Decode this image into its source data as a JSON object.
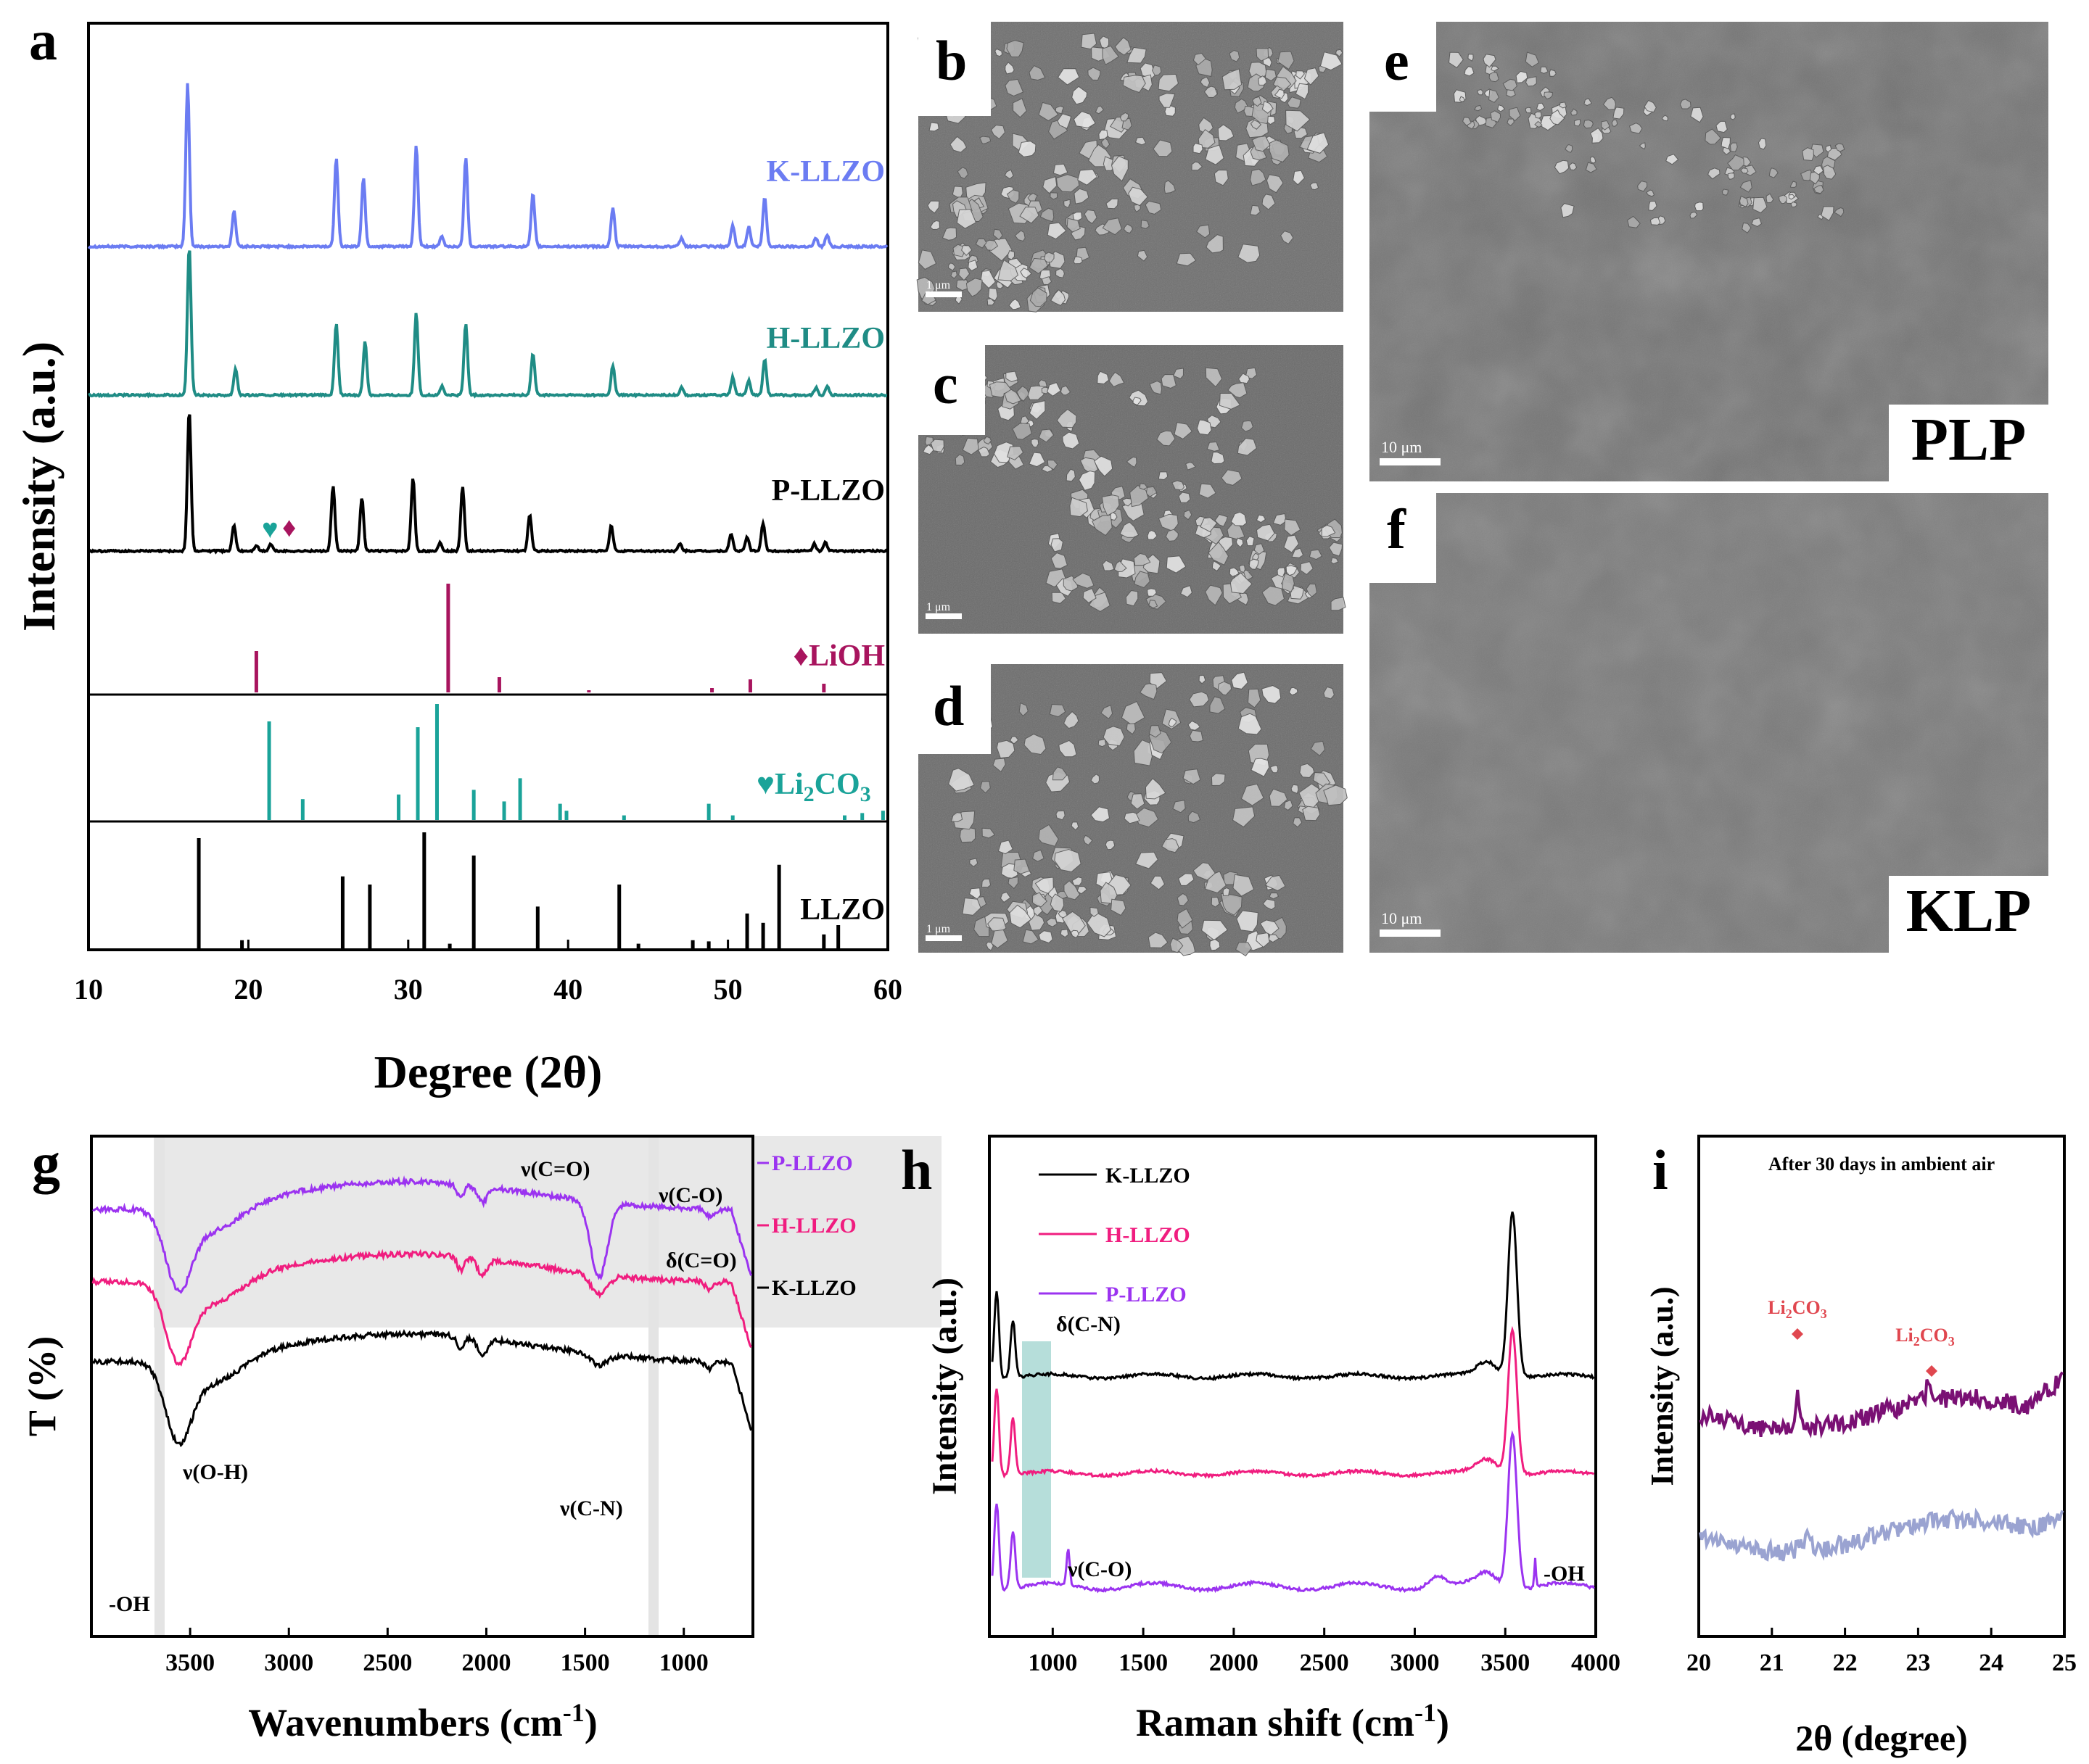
{
  "panels": {
    "a": {
      "label": "a"
    },
    "b": {
      "label": "b"
    },
    "c": {
      "label": "c"
    },
    "d": {
      "label": "d"
    },
    "e": {
      "label": "e"
    },
    "f": {
      "label": "f"
    },
    "g": {
      "label": "g"
    },
    "h": {
      "label": "h"
    },
    "i": {
      "label": "i"
    }
  },
  "sem": {
    "b": {
      "scale": "1 μm"
    },
    "c": {
      "scale": "1 μm"
    },
    "d": {
      "scale": "1 μm"
    },
    "e": {
      "scale": "10 μm",
      "tag": "PLP"
    },
    "f": {
      "scale": "10 μm",
      "tag": "KLP"
    }
  },
  "chart_data": [
    {
      "id": "a",
      "type": "line",
      "xlabel": "Degree (2θ)",
      "ylabel": "Intensity (a.u.)",
      "xlim": [
        10,
        60
      ],
      "xticks": [
        10,
        20,
        30,
        40,
        50,
        60
      ],
      "colors": {
        "K-LLZO": "#6b7cf2",
        "H-LLZO": "#1f8c85",
        "P-LLZO": "#000000",
        "LiOH": "#a8145e",
        "Li2CO3": "#1aa399",
        "LLZO": "#000000"
      },
      "series": [
        {
          "name": "K-LLZO",
          "peaks": [
            [
              16.2,
              1.0
            ],
            [
              19.1,
              0.22
            ],
            [
              25.5,
              0.55
            ],
            [
              27.2,
              0.42
            ],
            [
              30.5,
              0.62
            ],
            [
              32.1,
              0.06
            ],
            [
              33.6,
              0.55
            ],
            [
              37.8,
              0.32
            ],
            [
              42.8,
              0.24
            ],
            [
              47.1,
              0.05
            ],
            [
              50.3,
              0.13
            ],
            [
              51.3,
              0.12
            ],
            [
              52.3,
              0.3
            ],
            [
              55.5,
              0.05
            ],
            [
              56.2,
              0.07
            ]
          ]
        },
        {
          "name": "H-LLZO",
          "peaks": [
            [
              16.3,
              1.0
            ],
            [
              19.2,
              0.18
            ],
            [
              25.5,
              0.48
            ],
            [
              27.3,
              0.36
            ],
            [
              30.5,
              0.55
            ],
            [
              32.1,
              0.06
            ],
            [
              33.6,
              0.48
            ],
            [
              37.8,
              0.28
            ],
            [
              42.8,
              0.2
            ],
            [
              47.1,
              0.05
            ],
            [
              50.3,
              0.12
            ],
            [
              51.3,
              0.1
            ],
            [
              52.3,
              0.24
            ],
            [
              55.5,
              0.05
            ],
            [
              56.2,
              0.06
            ]
          ]
        },
        {
          "name": "P-LLZO",
          "peaks": [
            [
              16.3,
              1.0
            ],
            [
              19.1,
              0.18
            ],
            [
              20.5,
              0.04
            ],
            [
              21.4,
              0.05
            ],
            [
              25.3,
              0.46
            ],
            [
              27.1,
              0.38
            ],
            [
              30.3,
              0.52
            ],
            [
              32.0,
              0.06
            ],
            [
              33.4,
              0.46
            ],
            [
              37.6,
              0.26
            ],
            [
              42.7,
              0.18
            ],
            [
              47.0,
              0.05
            ],
            [
              50.2,
              0.12
            ],
            [
              51.2,
              0.1
            ],
            [
              52.2,
              0.2
            ],
            [
              55.4,
              0.05
            ],
            [
              56.1,
              0.06
            ]
          ]
        }
      ],
      "reference": [
        {
          "name": "LiOH",
          "lines": [
            [
              20.5,
              0.38
            ],
            [
              32.5,
              1.0
            ],
            [
              35.7,
              0.14
            ],
            [
              41.3,
              0.02
            ],
            [
              49.0,
              0.04
            ],
            [
              51.4,
              0.12
            ],
            [
              56.0,
              0.08
            ]
          ]
        },
        {
          "name": "Li2CO3",
          "lines": [
            [
              21.3,
              0.85
            ],
            [
              23.4,
              0.18
            ],
            [
              29.4,
              0.22
            ],
            [
              30.6,
              0.8
            ],
            [
              31.8,
              1.0
            ],
            [
              34.1,
              0.26
            ],
            [
              36.0,
              0.16
            ],
            [
              37.0,
              0.36
            ],
            [
              39.5,
              0.14
            ],
            [
              39.9,
              0.08
            ],
            [
              43.5,
              0.04
            ],
            [
              48.8,
              0.14
            ],
            [
              50.3,
              0.04
            ],
            [
              57.3,
              0.04
            ],
            [
              58.4,
              0.06
            ],
            [
              59.7,
              0.08
            ]
          ]
        },
        {
          "name": "LLZO",
          "lines": [
            [
              16.9,
              0.95
            ],
            [
              19.6,
              0.07
            ],
            [
              25.9,
              0.62
            ],
            [
              27.6,
              0.55
            ],
            [
              31.0,
              1.0
            ],
            [
              32.6,
              0.04
            ],
            [
              34.1,
              0.8
            ],
            [
              38.1,
              0.36
            ],
            [
              43.2,
              0.55
            ],
            [
              44.4,
              0.04
            ],
            [
              47.8,
              0.07
            ],
            [
              48.8,
              0.06
            ],
            [
              51.2,
              0.3
            ],
            [
              52.2,
              0.22
            ],
            [
              53.2,
              0.72
            ],
            [
              56.0,
              0.12
            ],
            [
              56.9,
              0.2
            ]
          ]
        }
      ],
      "series_labels": [
        "K-LLZO",
        "H-LLZO",
        "P-LLZO"
      ],
      "ref_labels": {
        "LiOH": "♦LiOH",
        "Li2CO3_prefix": "♥Li",
        "Li2CO3_sub1": "2",
        "Li2CO3_mid": "CO",
        "Li2CO3_sub2": "3",
        "LLZO": "LLZO"
      },
      "markers": {
        "diamond": "♦",
        "heart": "♥"
      }
    },
    {
      "id": "g",
      "type": "line",
      "xlabel_main": "Wavenumbers (cm",
      "xlabel_sup": "-1",
      "xlabel_end": ")",
      "ylabel": "T (%)",
      "xlim": [
        4000,
        650
      ],
      "xticks": [
        3500,
        3000,
        2500,
        2000,
        1500,
        1000
      ],
      "series": [
        {
          "name": "P-LLZO",
          "color": "#9b33f0"
        },
        {
          "name": "H-LLZO",
          "color": "#f01d7f"
        },
        {
          "name": "K-LLZO",
          "color": "#000000"
        }
      ],
      "annotations": [
        "ν(C=O)",
        "ν(C-O)",
        "δ(C=O)",
        "ν(O-H)",
        "ν(C-N)",
        "-OH"
      ],
      "highlight_bands": [
        3690,
        1150
      ]
    },
    {
      "id": "h",
      "type": "line",
      "xlabel_main": "Raman shift (cm",
      "xlabel_sup": "-1",
      "xlabel_end": ")",
      "ylabel": "Intensity (a.u.)",
      "xlim": [
        650,
        4000
      ],
      "xticks": [
        1000,
        1500,
        2000,
        2500,
        3000,
        3500,
        4000
      ],
      "series": [
        {
          "name": "K-LLZO",
          "color": "#000000"
        },
        {
          "name": "H-LLZO",
          "color": "#f01d7f"
        },
        {
          "name": "P-LLZO",
          "color": "#9b33f0"
        }
      ],
      "annotations": [
        "δ(C-N)",
        "ν(C-O)",
        "-OH"
      ],
      "highlight_band": [
        850,
        990
      ]
    },
    {
      "id": "i",
      "type": "line",
      "title": "After 30 days in ambient air",
      "xlabel": "2θ (degree)",
      "ylabel": "Intensity (a.u.)",
      "xlim": [
        20,
        25
      ],
      "xticks": [
        20,
        21,
        22,
        23,
        24,
        25
      ],
      "colors": [
        "#7a1074",
        "#9aa3d1"
      ],
      "marker_lines": [
        21.35,
        23.15
      ],
      "ann_main": "Li",
      "ann_sub1": "2",
      "ann_mid": "CO",
      "ann_sub2": "3"
    }
  ]
}
